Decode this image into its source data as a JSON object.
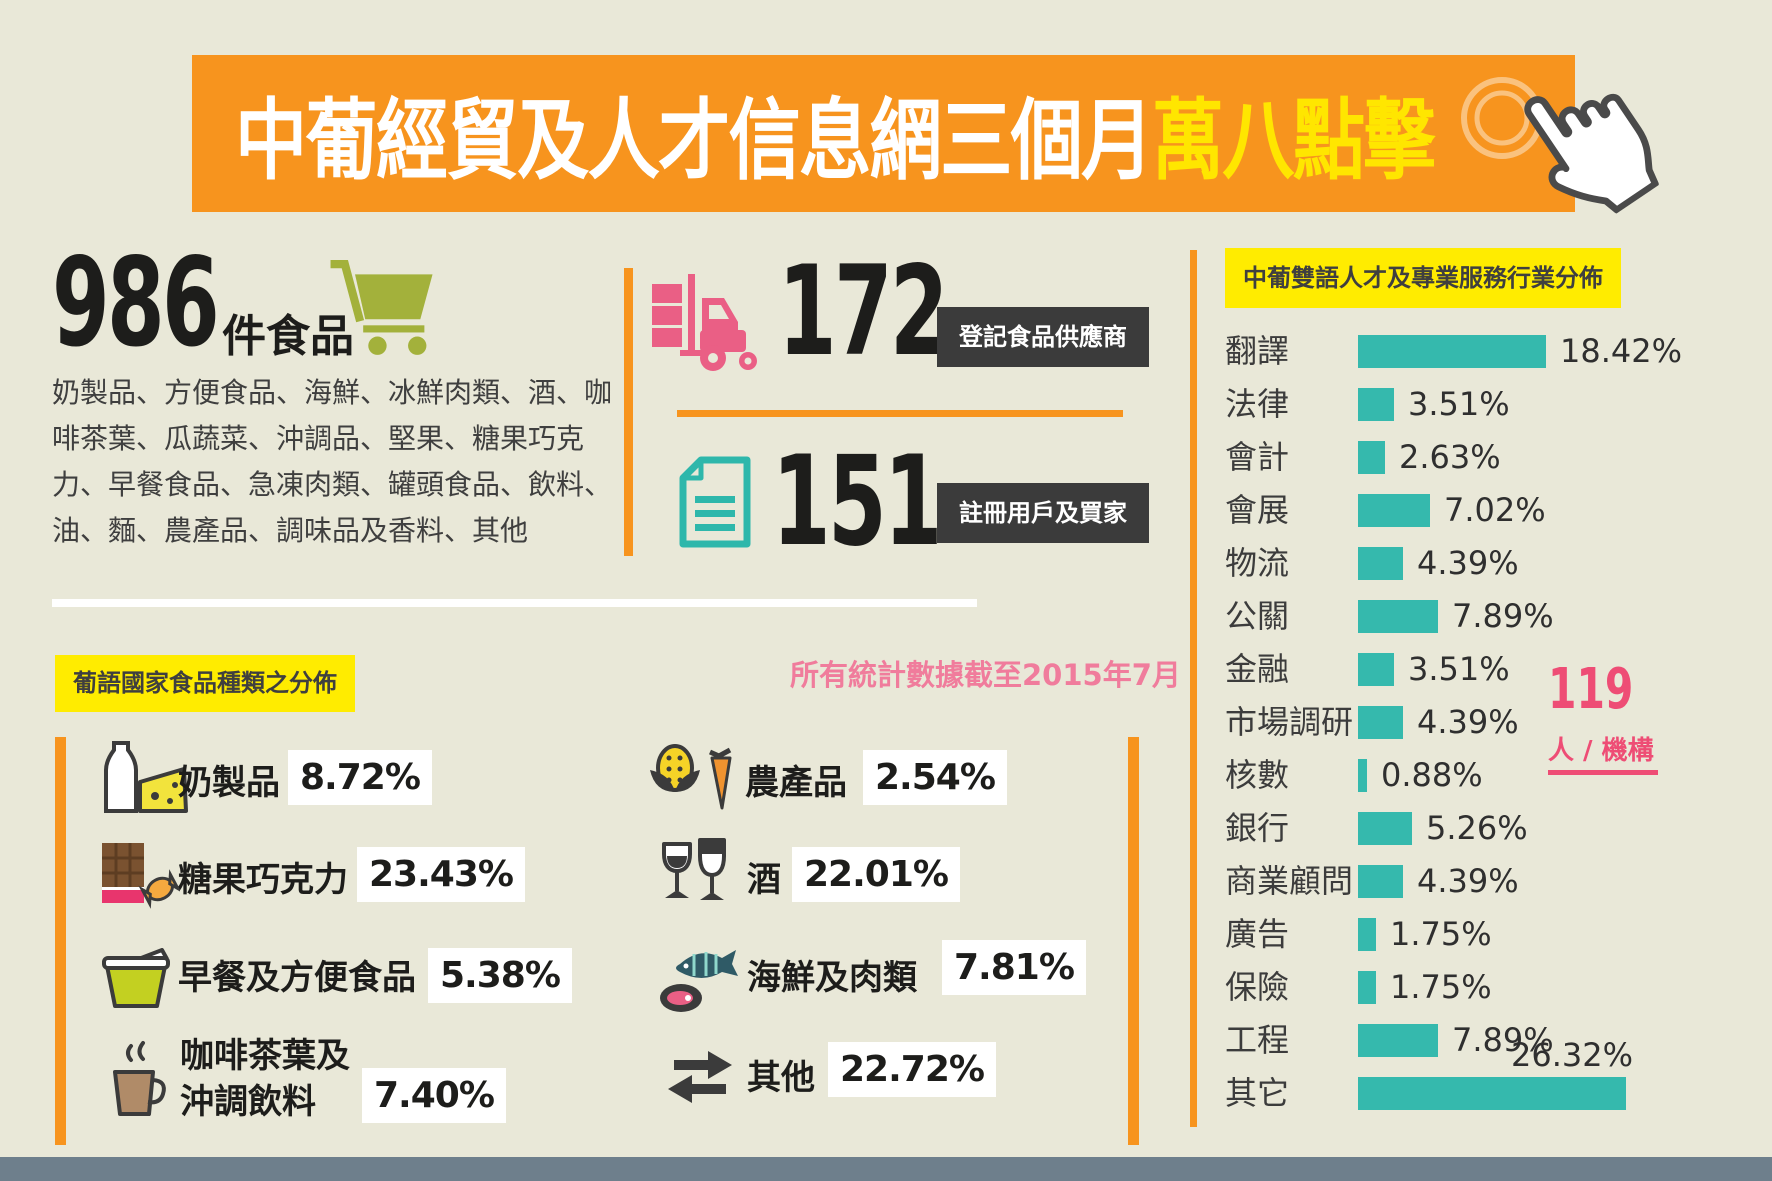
{
  "page": {
    "background": "#e9e8d8",
    "footer_color": "#6e7f8c",
    "accent_orange": "#f7941e",
    "highlight_yellow": "#ffec00"
  },
  "header": {
    "title_white": "中葡經貿及人才信息網三個月",
    "title_highlight": "萬八點擊",
    "banner_color": "#f7941e",
    "highlight_color": "#ffe600"
  },
  "stats": {
    "food_items": {
      "number": "986",
      "unit": "件食品",
      "description": "奶製品、方便食品、海鮮、冰鮮肉類、酒、咖啡茶葉、瓜蔬菜、沖調品、堅果、糖果巧克力、早餐食品、急凍肉類、罐頭食品、飲料、油、麵、農產品、調味品及香料、其他"
    },
    "suppliers": {
      "number": "172",
      "label": "登記食品供應商"
    },
    "users": {
      "number": "151",
      "label": "註冊用戶及買家"
    }
  },
  "chart_data": [
    {
      "type": "bar",
      "orientation": "horizontal",
      "title": "中葡雙語人才及專業服務行業分佈",
      "categories": [
        "翻譯",
        "法律",
        "會計",
        "會展",
        "物流",
        "公關",
        "金融",
        "市場調研",
        "核數",
        "銀行",
        "商業顧問",
        "廣告",
        "保險",
        "工程",
        "其它"
      ],
      "values": [
        18.42,
        3.51,
        2.63,
        7.02,
        4.39,
        7.89,
        3.51,
        4.39,
        0.88,
        5.26,
        4.39,
        1.75,
        1.75,
        7.89,
        26.32
      ],
      "value_labels": [
        "18.42%",
        "3.51%",
        "2.63%",
        "7.02%",
        "4.39%",
        "7.89%",
        "3.51%",
        "4.39%",
        "0.88%",
        "5.26%",
        "4.39%",
        "1.75%",
        "1.75%",
        "7.89%",
        "26.32%"
      ],
      "bar_color": "#35b9ad",
      "xlim": [
        0,
        26.32
      ],
      "grid": false,
      "legend": false,
      "total": {
        "number": "119",
        "unit": "人 / 機構",
        "color": "#ee4d75"
      }
    },
    {
      "type": "pictogram",
      "title": "葡語國家食品種類之分佈",
      "note": "所有統計數據截至2015年7月",
      "categories": [
        "奶製品",
        "糖果巧克力",
        "早餐及方便食品",
        "咖啡茶葉及沖調飲料",
        "農產品",
        "酒",
        "海鮮及肉類",
        "其他"
      ],
      "values": [
        8.72,
        23.43,
        5.38,
        7.4,
        2.54,
        22.01,
        7.81,
        22.72
      ],
      "value_labels": [
        "8.72%",
        "23.43%",
        "5.38%",
        "7.40%",
        "2.54%",
        "22.01%",
        "7.81%",
        "22.72%"
      ],
      "icons": [
        "milk-cheese-icon",
        "chocolate-candy-icon",
        "instant-food-icon",
        "coffee-tea-icon",
        "produce-icon",
        "wine-icon",
        "seafood-meat-icon",
        "transfer-arrows-icon"
      ]
    }
  ]
}
